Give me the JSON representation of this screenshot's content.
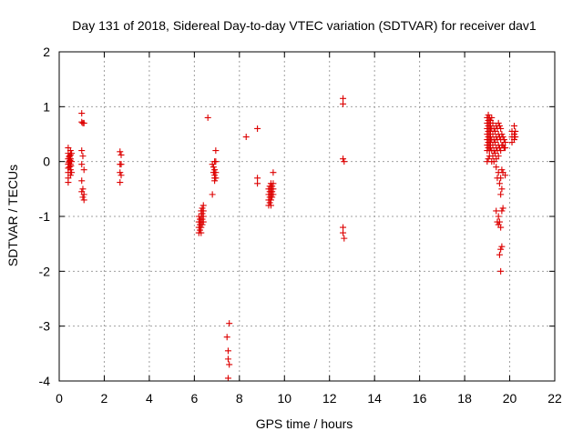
{
  "chart_data": {
    "type": "scatter",
    "title": "Day 131 of 2018, Sidereal Day-to-day VTEC variation (SDTVAR) for receiver dav1",
    "xlabel": "GPS time / hours",
    "ylabel": "SDTVAR / TECUs",
    "xlim": [
      0,
      22
    ],
    "ylim": [
      -4,
      2
    ],
    "x_ticks": [
      0,
      2,
      4,
      6,
      8,
      10,
      12,
      14,
      16,
      18,
      20,
      22
    ],
    "y_ticks": [
      -4,
      -3,
      -2,
      -1,
      0,
      1,
      2
    ],
    "x_tick_labels": [
      "0",
      "2",
      "4",
      "6",
      "8",
      "10",
      "12",
      "14",
      "16",
      "18",
      "20",
      "22"
    ],
    "y_tick_labels": [
      "-4",
      "-3",
      "-2",
      "-1",
      "0",
      "1",
      "2"
    ],
    "grid": true,
    "marker": "+",
    "marker_color": "#dd0000",
    "series": [
      {
        "name": "dav1",
        "points": [
          [
            0.4,
            0.25
          ],
          [
            0.4,
            0.15
          ],
          [
            0.4,
            0.05
          ],
          [
            0.4,
            -0.05
          ],
          [
            0.4,
            -0.12
          ],
          [
            0.4,
            -0.2
          ],
          [
            0.4,
            -0.3
          ],
          [
            0.4,
            -0.38
          ],
          [
            0.45,
            0.1
          ],
          [
            0.45,
            0.0
          ],
          [
            0.45,
            -0.1
          ],
          [
            0.5,
            0.2
          ],
          [
            0.5,
            0.05
          ],
          [
            0.5,
            -0.05
          ],
          [
            0.5,
            -0.15
          ],
          [
            0.5,
            -0.25
          ],
          [
            0.55,
            0.15
          ],
          [
            0.55,
            0.0
          ],
          [
            0.55,
            -0.2
          ],
          [
            0.45,
            0.08
          ],
          [
            0.5,
            0.12
          ],
          [
            0.42,
            -0.02
          ],
          [
            0.52,
            -0.08
          ],
          [
            0.48,
            0.02
          ],
          [
            1.0,
            0.88
          ],
          [
            1.0,
            0.72
          ],
          [
            1.05,
            0.7
          ],
          [
            1.1,
            0.7
          ],
          [
            1.0,
            0.2
          ],
          [
            1.05,
            0.1
          ],
          [
            1.0,
            -0.05
          ],
          [
            1.1,
            -0.15
          ],
          [
            1.0,
            -0.35
          ],
          [
            1.05,
            -0.5
          ],
          [
            1.0,
            -0.55
          ],
          [
            1.1,
            -0.6
          ],
          [
            1.05,
            -0.65
          ],
          [
            1.1,
            -0.7
          ],
          [
            2.7,
            0.18
          ],
          [
            2.75,
            0.12
          ],
          [
            2.7,
            -0.05
          ],
          [
            2.75,
            -0.05
          ],
          [
            2.7,
            -0.2
          ],
          [
            2.75,
            -0.25
          ],
          [
            2.7,
            -0.38
          ],
          [
            6.2,
            -1.0
          ],
          [
            6.2,
            -1.1
          ],
          [
            6.2,
            -1.2
          ],
          [
            6.2,
            -1.3
          ],
          [
            6.25,
            -1.05
          ],
          [
            6.25,
            -1.15
          ],
          [
            6.25,
            -1.25
          ],
          [
            6.3,
            -0.9
          ],
          [
            6.3,
            -1.0
          ],
          [
            6.3,
            -1.1
          ],
          [
            6.3,
            -1.2
          ],
          [
            6.3,
            -1.3
          ],
          [
            6.35,
            -0.85
          ],
          [
            6.35,
            -0.95
          ],
          [
            6.35,
            -1.05
          ],
          [
            6.35,
            -1.15
          ],
          [
            6.4,
            -0.8
          ],
          [
            6.4,
            -0.9
          ],
          [
            6.4,
            -1.0
          ],
          [
            6.4,
            -1.1
          ],
          [
            6.6,
            0.8
          ],
          [
            6.8,
            -0.05
          ],
          [
            6.8,
            -0.6
          ],
          [
            6.85,
            -0.1
          ],
          [
            6.85,
            -0.2
          ],
          [
            6.9,
            0.0
          ],
          [
            6.9,
            -0.15
          ],
          [
            6.9,
            -0.25
          ],
          [
            6.9,
            -0.3
          ],
          [
            6.9,
            -0.35
          ],
          [
            6.95,
            0.2
          ],
          [
            6.95,
            0.0
          ],
          [
            6.95,
            -0.2
          ],
          [
            6.95,
            -0.3
          ],
          [
            7.45,
            -3.2
          ],
          [
            7.5,
            -3.45
          ],
          [
            7.5,
            -3.6
          ],
          [
            7.55,
            -3.7
          ],
          [
            7.55,
            -2.95
          ],
          [
            7.5,
            -3.95
          ],
          [
            8.3,
            0.45
          ],
          [
            8.8,
            0.6
          ],
          [
            8.8,
            -0.3
          ],
          [
            8.8,
            -0.4
          ],
          [
            9.3,
            -0.5
          ],
          [
            9.3,
            -0.6
          ],
          [
            9.3,
            -0.7
          ],
          [
            9.3,
            -0.8
          ],
          [
            9.35,
            -0.45
          ],
          [
            9.35,
            -0.55
          ],
          [
            9.35,
            -0.65
          ],
          [
            9.35,
            -0.75
          ],
          [
            9.4,
            -0.4
          ],
          [
            9.4,
            -0.5
          ],
          [
            9.4,
            -0.6
          ],
          [
            9.4,
            -0.7
          ],
          [
            9.4,
            -0.8
          ],
          [
            9.45,
            -0.45
          ],
          [
            9.45,
            -0.55
          ],
          [
            9.45,
            -0.65
          ],
          [
            9.5,
            -0.2
          ],
          [
            9.5,
            -0.4
          ],
          [
            9.5,
            -0.5
          ],
          [
            9.5,
            -0.6
          ],
          [
            12.6,
            1.15
          ],
          [
            12.6,
            1.05
          ],
          [
            12.6,
            0.05
          ],
          [
            12.65,
            0.0
          ],
          [
            12.6,
            -1.2
          ],
          [
            12.6,
            -1.3
          ],
          [
            12.65,
            -1.4
          ],
          [
            19.0,
            0.8
          ],
          [
            19.0,
            0.7
          ],
          [
            19.0,
            0.6
          ],
          [
            19.0,
            0.5
          ],
          [
            19.0,
            0.4
          ],
          [
            19.0,
            0.3
          ],
          [
            19.0,
            0.2
          ],
          [
            19.0,
            0.0
          ],
          [
            19.05,
            0.85
          ],
          [
            19.05,
            0.75
          ],
          [
            19.05,
            0.65
          ],
          [
            19.05,
            0.55
          ],
          [
            19.05,
            0.45
          ],
          [
            19.05,
            0.35
          ],
          [
            19.05,
            0.25
          ],
          [
            19.05,
            0.05
          ],
          [
            19.1,
            0.8
          ],
          [
            19.1,
            0.7
          ],
          [
            19.1,
            0.6
          ],
          [
            19.1,
            0.5
          ],
          [
            19.1,
            0.4
          ],
          [
            19.1,
            0.3
          ],
          [
            19.1,
            0.2
          ],
          [
            19.1,
            0.1
          ],
          [
            19.15,
            0.75
          ],
          [
            19.15,
            0.65
          ],
          [
            19.15,
            0.55
          ],
          [
            19.15,
            0.45
          ],
          [
            19.15,
            0.35
          ],
          [
            19.15,
            0.25
          ],
          [
            19.2,
            0.8
          ],
          [
            19.2,
            0.6
          ],
          [
            19.2,
            0.4
          ],
          [
            19.2,
            0.2
          ],
          [
            19.2,
            0.0
          ],
          [
            19.25,
            0.7
          ],
          [
            19.25,
            0.5
          ],
          [
            19.25,
            0.3
          ],
          [
            19.25,
            0.1
          ],
          [
            19.3,
            0.6
          ],
          [
            19.3,
            0.4
          ],
          [
            19.3,
            0.2
          ],
          [
            19.3,
            0.0
          ],
          [
            19.35,
            0.55
          ],
          [
            19.35,
            0.35
          ],
          [
            19.35,
            0.15
          ],
          [
            19.4,
            0.65
          ],
          [
            19.4,
            0.45
          ],
          [
            19.4,
            0.25
          ],
          [
            19.4,
            0.05
          ],
          [
            19.4,
            -0.1
          ],
          [
            19.4,
            -0.9
          ],
          [
            19.45,
            0.6
          ],
          [
            19.45,
            0.4
          ],
          [
            19.45,
            0.2
          ],
          [
            19.45,
            -0.3
          ],
          [
            19.45,
            -1.1
          ],
          [
            19.5,
            0.7
          ],
          [
            19.5,
            0.5
          ],
          [
            19.5,
            0.3
          ],
          [
            19.5,
            0.1
          ],
          [
            19.5,
            -0.2
          ],
          [
            19.5,
            -1.0
          ],
          [
            19.5,
            -1.15
          ],
          [
            19.55,
            0.65
          ],
          [
            19.55,
            0.45
          ],
          [
            19.55,
            0.25
          ],
          [
            19.55,
            -0.4
          ],
          [
            19.55,
            -1.1
          ],
          [
            19.55,
            -1.7
          ],
          [
            19.6,
            0.6
          ],
          [
            19.6,
            0.4
          ],
          [
            19.6,
            0.2
          ],
          [
            19.6,
            -0.3
          ],
          [
            19.6,
            -0.6
          ],
          [
            19.6,
            -1.2
          ],
          [
            19.6,
            -1.6
          ],
          [
            19.6,
            -2.0
          ],
          [
            19.65,
            0.5
          ],
          [
            19.65,
            0.3
          ],
          [
            19.65,
            -0.15
          ],
          [
            19.65,
            -0.5
          ],
          [
            19.65,
            -0.9
          ],
          [
            19.65,
            -1.55
          ],
          [
            19.7,
            0.45
          ],
          [
            19.7,
            0.3
          ],
          [
            19.7,
            -0.2
          ],
          [
            19.7,
            -0.85
          ],
          [
            19.75,
            0.4
          ],
          [
            19.75,
            0.25
          ],
          [
            19.8,
            0.35
          ],
          [
            19.8,
            0.25
          ],
          [
            19.8,
            -0.25
          ],
          [
            20.1,
            0.55
          ],
          [
            20.1,
            0.45
          ],
          [
            20.1,
            0.35
          ],
          [
            20.2,
            0.5
          ],
          [
            20.2,
            0.4
          ],
          [
            20.2,
            0.65
          ],
          [
            20.25,
            0.55
          ],
          [
            20.25,
            0.45
          ]
        ]
      }
    ]
  }
}
